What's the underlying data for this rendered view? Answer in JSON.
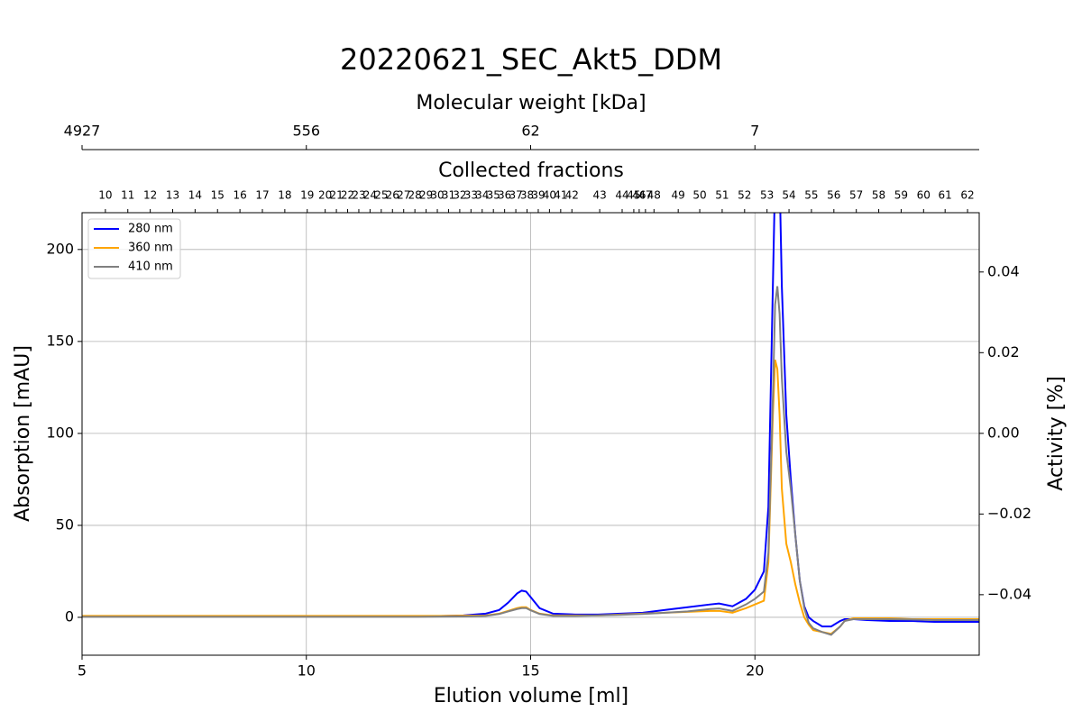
{
  "chart_data": {
    "type": "line",
    "title": "20220621_SEC_Akt5_DDM",
    "xlabel": "Elution volume [ml]",
    "ylabel": "Absorption [mAU]",
    "y2label": "Activity [%]",
    "y2label_color": "#ff0000",
    "top_axis_label": "Molecular weight [kDa]",
    "top_ticks": [
      {
        "value": 5,
        "label": "4927"
      },
      {
        "value": 10,
        "label": "556"
      },
      {
        "value": 15,
        "label": "62"
      },
      {
        "value": 20,
        "label": "7"
      }
    ],
    "fraction_axis_label": "Collected fractions",
    "fraction_ticks": [
      {
        "value": 5.52,
        "label": "10"
      },
      {
        "value": 6.02,
        "label": "11"
      },
      {
        "value": 6.52,
        "label": "12"
      },
      {
        "value": 7.02,
        "label": "13"
      },
      {
        "value": 7.52,
        "label": "14"
      },
      {
        "value": 8.02,
        "label": "15"
      },
      {
        "value": 8.52,
        "label": "16"
      },
      {
        "value": 9.02,
        "label": "17"
      },
      {
        "value": 9.52,
        "label": "18"
      },
      {
        "value": 10.02,
        "label": "19"
      },
      {
        "value": 10.42,
        "label": "20"
      },
      {
        "value": 10.67,
        "label": "21"
      },
      {
        "value": 10.92,
        "label": "22"
      },
      {
        "value": 11.17,
        "label": "23"
      },
      {
        "value": 11.42,
        "label": "24"
      },
      {
        "value": 11.67,
        "label": "25"
      },
      {
        "value": 11.92,
        "label": "26"
      },
      {
        "value": 12.17,
        "label": "27"
      },
      {
        "value": 12.42,
        "label": "28"
      },
      {
        "value": 12.67,
        "label": "29"
      },
      {
        "value": 12.92,
        "label": "30"
      },
      {
        "value": 13.17,
        "label": "31"
      },
      {
        "value": 13.42,
        "label": "32"
      },
      {
        "value": 13.67,
        "label": "33"
      },
      {
        "value": 13.92,
        "label": "34"
      },
      {
        "value": 14.17,
        "label": "35"
      },
      {
        "value": 14.42,
        "label": "36"
      },
      {
        "value": 14.67,
        "label": "37"
      },
      {
        "value": 14.92,
        "label": "38"
      },
      {
        "value": 15.17,
        "label": "39"
      },
      {
        "value": 15.42,
        "label": "40"
      },
      {
        "value": 15.67,
        "label": "41"
      },
      {
        "value": 15.92,
        "label": "42"
      },
      {
        "value": 16.54,
        "label": "43"
      },
      {
        "value": 17.04,
        "label": "44"
      },
      {
        "value": 17.3,
        "label": "45"
      },
      {
        "value": 17.42,
        "label": "46"
      },
      {
        "value": 17.56,
        "label": "47"
      },
      {
        "value": 17.75,
        "label": "48"
      },
      {
        "value": 18.29,
        "label": "49"
      },
      {
        "value": 18.77,
        "label": "50"
      },
      {
        "value": 19.27,
        "label": "51"
      },
      {
        "value": 19.77,
        "label": "52"
      },
      {
        "value": 20.27,
        "label": "53"
      },
      {
        "value": 20.76,
        "label": "54"
      },
      {
        "value": 21.26,
        "label": "55"
      },
      {
        "value": 21.76,
        "label": "56"
      },
      {
        "value": 22.26,
        "label": "57"
      },
      {
        "value": 22.76,
        "label": "58"
      },
      {
        "value": 23.26,
        "label": "59"
      },
      {
        "value": 23.76,
        "label": "60"
      },
      {
        "value": 24.24,
        "label": "61"
      },
      {
        "value": 24.74,
        "label": "62"
      }
    ],
    "xlim": [
      5,
      25
    ],
    "xticks": [
      5,
      10,
      15,
      20
    ],
    "ylim": [
      -20.6,
      220
    ],
    "yticks": [
      0,
      50,
      100,
      150,
      200
    ],
    "y2lim": [
      -0.055,
      0.0547
    ],
    "y2ticks": [
      {
        "value": -0.04,
        "label": "−0.04"
      },
      {
        "value": -0.02,
        "label": "−0.02"
      },
      {
        "value": 0,
        "label": "0.00"
      },
      {
        "value": 0.02,
        "label": "0.02"
      },
      0.04
    ],
    "grid": true,
    "legend": "upper left",
    "x": [
      5,
      5.5,
      6,
      6.5,
      7,
      7.5,
      8,
      8.5,
      9,
      9.5,
      10,
      10.5,
      11,
      11.5,
      12,
      12.5,
      13,
      13.5,
      14,
      14.3,
      14.5,
      14.7,
      14.8,
      14.9,
      15,
      15.2,
      15.5,
      16,
      16.5,
      17,
      17.5,
      18,
      18.5,
      19,
      19.2,
      19.5,
      19.8,
      20,
      20.2,
      20.3,
      20.4,
      20.45,
      20.5,
      20.55,
      20.6,
      20.7,
      20.8,
      20.9,
      21,
      21.1,
      21.2,
      21.3,
      21.5,
      21.7,
      21.9,
      22,
      22.2,
      22.5,
      23,
      23.5,
      24,
      24.5,
      25
    ],
    "series": [
      {
        "name": "280 nm",
        "color": "#0000ff",
        "values": [
          0.5,
          0.5,
          0.5,
          0.5,
          0.5,
          0.5,
          0.5,
          0.5,
          0.5,
          0.5,
          0.5,
          0.5,
          0.5,
          0.5,
          0.5,
          0.5,
          0.7,
          1,
          2,
          4,
          8,
          13,
          14.5,
          14,
          11,
          5,
          2,
          1.5,
          1.5,
          2,
          2.5,
          4,
          5.5,
          7,
          7.5,
          6,
          10,
          15,
          25,
          60,
          180,
          240,
          260,
          240,
          180,
          110,
          75,
          45,
          20,
          6,
          0,
          -2,
          -5,
          -5,
          -2,
          -1,
          -1,
          -1.5,
          -2,
          -2,
          -2.5,
          -2.5,
          -2.5
        ]
      },
      {
        "name": "360 nm",
        "color": "#ffa500",
        "values": [
          0.8,
          0.8,
          0.8,
          0.8,
          0.8,
          0.8,
          0.8,
          0.8,
          0.8,
          0.8,
          0.8,
          0.8,
          0.8,
          0.8,
          0.8,
          0.8,
          0.8,
          0.9,
          1,
          2,
          3.5,
          5,
          5.5,
          5.5,
          4,
          2,
          1,
          1,
          1,
          1.5,
          2,
          2.5,
          3,
          3.5,
          3.5,
          2.5,
          5,
          7,
          9,
          30,
          110,
          140,
          135,
          110,
          70,
          40,
          30,
          18,
          8,
          0,
          -4,
          -7,
          -8,
          -9,
          -5,
          -2,
          -0.5,
          -0.5,
          -0.5,
          -1,
          -1,
          -1,
          -1
        ]
      },
      {
        "name": "410 nm",
        "color": "#808080",
        "values": [
          0.3,
          0.3,
          0.3,
          0.3,
          0.3,
          0.3,
          0.3,
          0.3,
          0.3,
          0.3,
          0.3,
          0.3,
          0.3,
          0.3,
          0.3,
          0.3,
          0.4,
          0.5,
          0.8,
          1.8,
          3.2,
          4.5,
          5,
          5,
          3.8,
          1.8,
          0.8,
          0.8,
          1,
          1.3,
          1.8,
          2.5,
          3.2,
          4.5,
          4.8,
          3.5,
          7,
          10,
          14,
          35,
          120,
          170,
          180,
          165,
          130,
          90,
          70,
          45,
          20,
          5,
          -3,
          -6,
          -8,
          -9.5,
          -5,
          -2,
          -1,
          -1,
          -1,
          -1.2,
          -1.5,
          -1.5,
          -1.5
        ]
      }
    ]
  }
}
